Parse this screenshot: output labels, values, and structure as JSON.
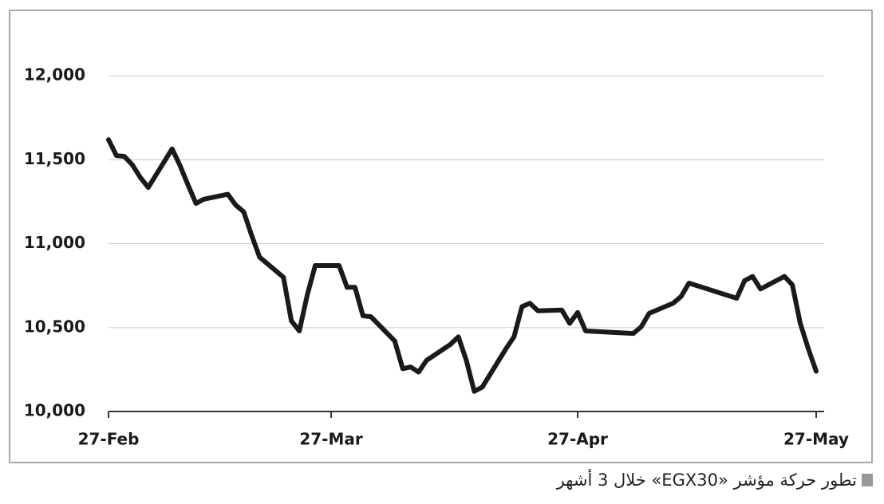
{
  "chart_data": {
    "type": "line",
    "caption": "تطور حركة مؤشر «EGX30» خلال 3 أشهر",
    "x": [
      "27-Feb",
      "28-Feb",
      "1-Mar",
      "2-Mar",
      "3-Mar",
      "4-Mar",
      "7-Mar",
      "8-Mar",
      "9-Mar",
      "10-Mar",
      "11-Mar",
      "14-Mar",
      "15-Mar",
      "16-Mar",
      "17-Mar",
      "18-Mar",
      "21-Mar",
      "22-Mar",
      "23-Mar",
      "24-Mar",
      "25-Mar",
      "28-Mar",
      "29-Mar",
      "30-Mar",
      "31-Mar",
      "1-Apr",
      "4-Apr",
      "5-Apr",
      "6-Apr",
      "7-Apr",
      "8-Apr",
      "11-Apr",
      "12-Apr",
      "13-Apr",
      "14-Apr",
      "15-Apr",
      "18-Apr",
      "19-Apr",
      "20-Apr",
      "21-Apr",
      "22-Apr",
      "25-Apr",
      "26-Apr",
      "27-Apr",
      "28-Apr",
      "4-May",
      "5-May",
      "6-May",
      "9-May",
      "10-May",
      "11-May",
      "17-May",
      "18-May",
      "19-May",
      "20-May",
      "23-May",
      "24-May",
      "25-May",
      "26-May",
      "27-May"
    ],
    "series": [
      {
        "color": "#1a1a1a",
        "values": [
          11620,
          11525,
          11520,
          11470,
          11395,
          11335,
          11565,
          11465,
          11350,
          11240,
          11265,
          11295,
          11230,
          11190,
          11050,
          10920,
          10800,
          10540,
          10480,
          10695,
          10870,
          10870,
          10740,
          10740,
          10570,
          10565,
          10420,
          10255,
          10265,
          10235,
          10305,
          10400,
          10445,
          10305,
          10120,
          10145,
          10375,
          10445,
          10625,
          10645,
          10600,
          10605,
          10525,
          10590,
          10480,
          10465,
          10505,
          10585,
          10645,
          10685,
          10765,
          10675,
          10780,
          10805,
          10730,
          10805,
          10755,
          10525,
          10375,
          10240
        ]
      }
    ],
    "xlim": [
      "27-Feb",
      "27-May"
    ],
    "xticks": [
      "27-Feb",
      "27-Mar",
      "27-Apr",
      "27-May"
    ],
    "ylim": [
      10000,
      12400
    ],
    "yticks": [
      {
        "value": 10000,
        "label": "10,000"
      },
      {
        "value": 10500,
        "label": "10,500"
      },
      {
        "value": 11000,
        "label": "11,000"
      },
      {
        "value": 11500,
        "label": "11,500"
      },
      {
        "value": 12000,
        "label": "12,000"
      }
    ],
    "grid": true
  }
}
